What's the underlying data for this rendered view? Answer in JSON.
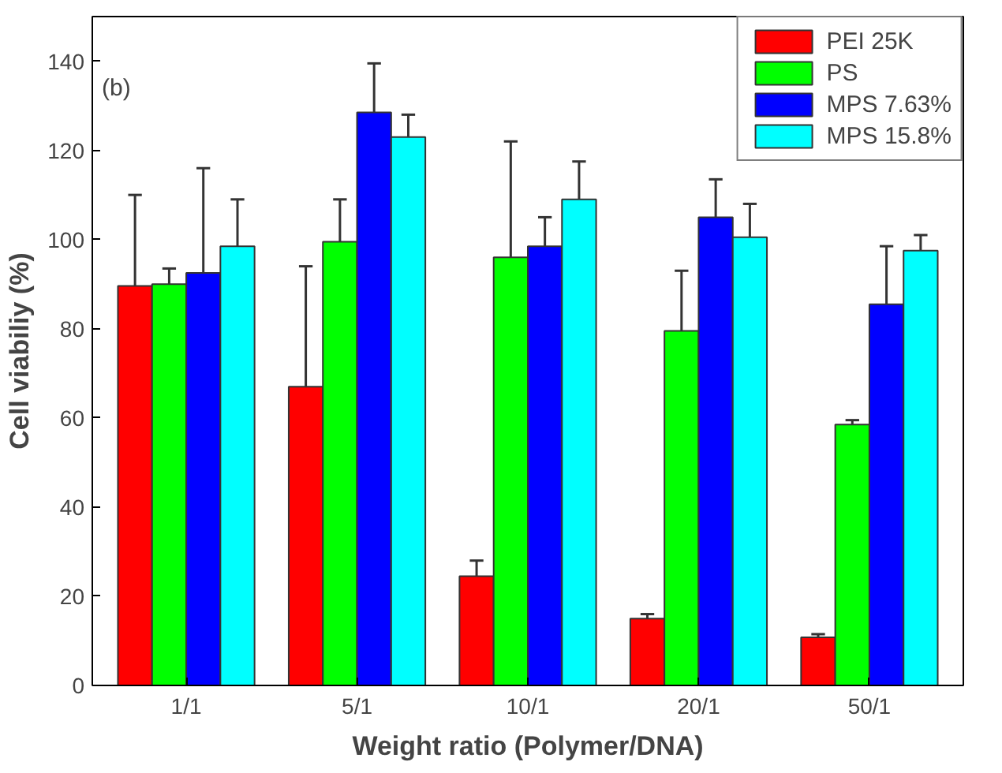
{
  "chart_data": {
    "type": "bar",
    "xlabel": "Weight ratio (Polymer/DNA)",
    "ylabel": "Cell viabiliy (%)",
    "categories": [
      "1/1",
      "5/1",
      "10/1",
      "20/1",
      "50/1"
    ],
    "series": [
      {
        "name": "PEI 25K",
        "color": "#ff0000",
        "values": [
          89.6,
          67,
          24.5,
          15,
          10.8
        ],
        "errors": [
          [
            89.6,
            110
          ],
          [
            67,
            94
          ],
          [
            24.5,
            28
          ],
          [
            15,
            16
          ],
          [
            10.8,
            11.5
          ]
        ]
      },
      {
        "name": "PS",
        "color": "#00ff00",
        "values": [
          90,
          99.5,
          96,
          79.5,
          58.5
        ],
        "errors": [
          [
            90,
            93.5
          ],
          [
            99.5,
            109
          ],
          [
            96,
            122
          ],
          [
            79.5,
            93
          ],
          [
            58.5,
            59.5
          ]
        ]
      },
      {
        "name": "MPS 7.63%",
        "color": "#0000ff",
        "values": [
          92.5,
          128.5,
          98.5,
          105,
          85.5
        ],
        "errors": [
          [
            92.5,
            116
          ],
          [
            128.5,
            139.5
          ],
          [
            98.5,
            105
          ],
          [
            105,
            113.5
          ],
          [
            85.5,
            98.5
          ]
        ]
      },
      {
        "name": "MPS 15.8%",
        "color": "#00ffff",
        "values": [
          98.5,
          123,
          109,
          100.5,
          97.5
        ],
        "errors": [
          [
            98.5,
            109
          ],
          [
            123,
            128
          ],
          [
            109,
            117.5
          ],
          [
            100.5,
            108
          ],
          [
            97.5,
            101
          ]
        ]
      }
    ],
    "annotations": [
      "(b)"
    ],
    "ylim": [
      0,
      150
    ],
    "yticks": [
      0,
      20,
      40,
      60,
      80,
      100,
      120,
      140
    ],
    "grid": false,
    "legend": "top right"
  }
}
